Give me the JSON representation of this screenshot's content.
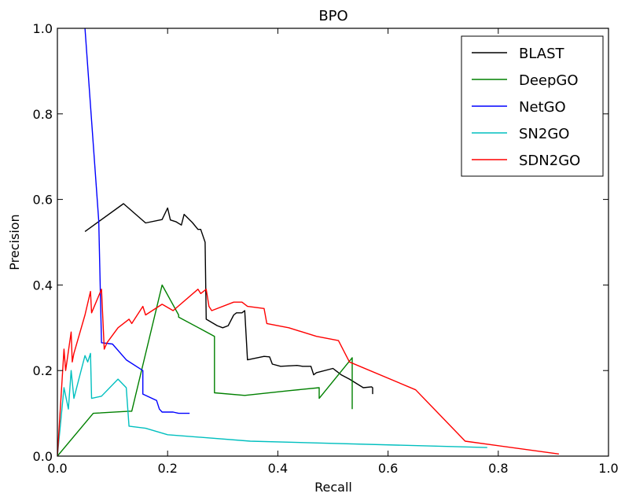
{
  "chart_data": {
    "type": "line",
    "title": "BPO",
    "xlabel": "Recall",
    "ylabel": "Precision",
    "xlim": [
      0.0,
      1.0
    ],
    "ylim": [
      0.0,
      1.0
    ],
    "xticks": [
      "0.0",
      "0.2",
      "0.4",
      "0.6",
      "0.8",
      "1.0"
    ],
    "yticks": [
      "0.0",
      "0.2",
      "0.4",
      "0.6",
      "0.8",
      "1.0"
    ],
    "grid": false,
    "legend_position": "top-right",
    "series": [
      {
        "name": "BLAST",
        "color": "#000000",
        "x": [
          0.05,
          0.12,
          0.16,
          0.19,
          0.2,
          0.205,
          0.215,
          0.225,
          0.23,
          0.245,
          0.255,
          0.26,
          0.268,
          0.27,
          0.29,
          0.3,
          0.31,
          0.32,
          0.325,
          0.335,
          0.34,
          0.345,
          0.375,
          0.385,
          0.39,
          0.405,
          0.435,
          0.445,
          0.46,
          0.465,
          0.47,
          0.5,
          0.505,
          0.515,
          0.53,
          0.555,
          0.57,
          0.572,
          0.572
        ],
        "y": [
          0.525,
          0.59,
          0.545,
          0.553,
          0.58,
          0.552,
          0.548,
          0.54,
          0.565,
          0.546,
          0.53,
          0.53,
          0.5,
          0.32,
          0.305,
          0.3,
          0.305,
          0.33,
          0.335,
          0.335,
          0.34,
          0.225,
          0.233,
          0.232,
          0.215,
          0.21,
          0.212,
          0.21,
          0.21,
          0.19,
          0.195,
          0.205,
          0.2,
          0.19,
          0.18,
          0.16,
          0.162,
          0.16,
          0.145
        ]
      },
      {
        "name": "DeepGO",
        "color": "#008000",
        "x": [
          0.0,
          0.065,
          0.13,
          0.135,
          0.19,
          0.22,
          0.22,
          0.285,
          0.285,
          0.34,
          0.42,
          0.475,
          0.475,
          0.535,
          0.535
        ],
        "y": [
          0.0,
          0.1,
          0.105,
          0.105,
          0.4,
          0.33,
          0.325,
          0.28,
          0.148,
          0.142,
          0.153,
          0.16,
          0.135,
          0.23,
          0.11
        ]
      },
      {
        "name": "NetGO",
        "color": "#0000ff",
        "x": [
          0.05,
          0.075,
          0.08,
          0.1,
          0.125,
          0.155,
          0.155,
          0.18,
          0.185,
          0.19,
          0.205,
          0.21,
          0.22,
          0.24
        ],
        "y": [
          1.0,
          0.55,
          0.265,
          0.262,
          0.225,
          0.2,
          0.145,
          0.13,
          0.11,
          0.103,
          0.103,
          0.103,
          0.1,
          0.1
        ],
        "ylim_clip": true
      },
      {
        "name": "SN2GO",
        "color": "#00bfbf",
        "x": [
          0.0,
          0.012,
          0.02,
          0.025,
          0.03,
          0.04,
          0.05,
          0.055,
          0.06,
          0.062,
          0.08,
          0.11,
          0.125,
          0.13,
          0.16,
          0.2,
          0.35,
          0.78
        ],
        "y": [
          0.0,
          0.16,
          0.11,
          0.2,
          0.135,
          0.185,
          0.235,
          0.22,
          0.24,
          0.135,
          0.14,
          0.18,
          0.16,
          0.07,
          0.065,
          0.05,
          0.035,
          0.02
        ]
      },
      {
        "name": "SDN2GO",
        "color": "#ff0000",
        "x": [
          0.0,
          0.012,
          0.015,
          0.025,
          0.027,
          0.03,
          0.05,
          0.06,
          0.062,
          0.08,
          0.085,
          0.09,
          0.11,
          0.13,
          0.135,
          0.155,
          0.16,
          0.19,
          0.21,
          0.255,
          0.26,
          0.27,
          0.275,
          0.28,
          0.32,
          0.335,
          0.345,
          0.375,
          0.38,
          0.42,
          0.47,
          0.51,
          0.53,
          0.65,
          0.74,
          0.91
        ],
        "y": [
          0.0,
          0.25,
          0.2,
          0.29,
          0.22,
          0.24,
          0.33,
          0.385,
          0.335,
          0.39,
          0.25,
          0.265,
          0.3,
          0.32,
          0.31,
          0.35,
          0.33,
          0.355,
          0.34,
          0.39,
          0.38,
          0.39,
          0.35,
          0.34,
          0.36,
          0.36,
          0.35,
          0.345,
          0.31,
          0.3,
          0.28,
          0.27,
          0.22,
          0.155,
          0.035,
          0.005
        ]
      }
    ]
  }
}
